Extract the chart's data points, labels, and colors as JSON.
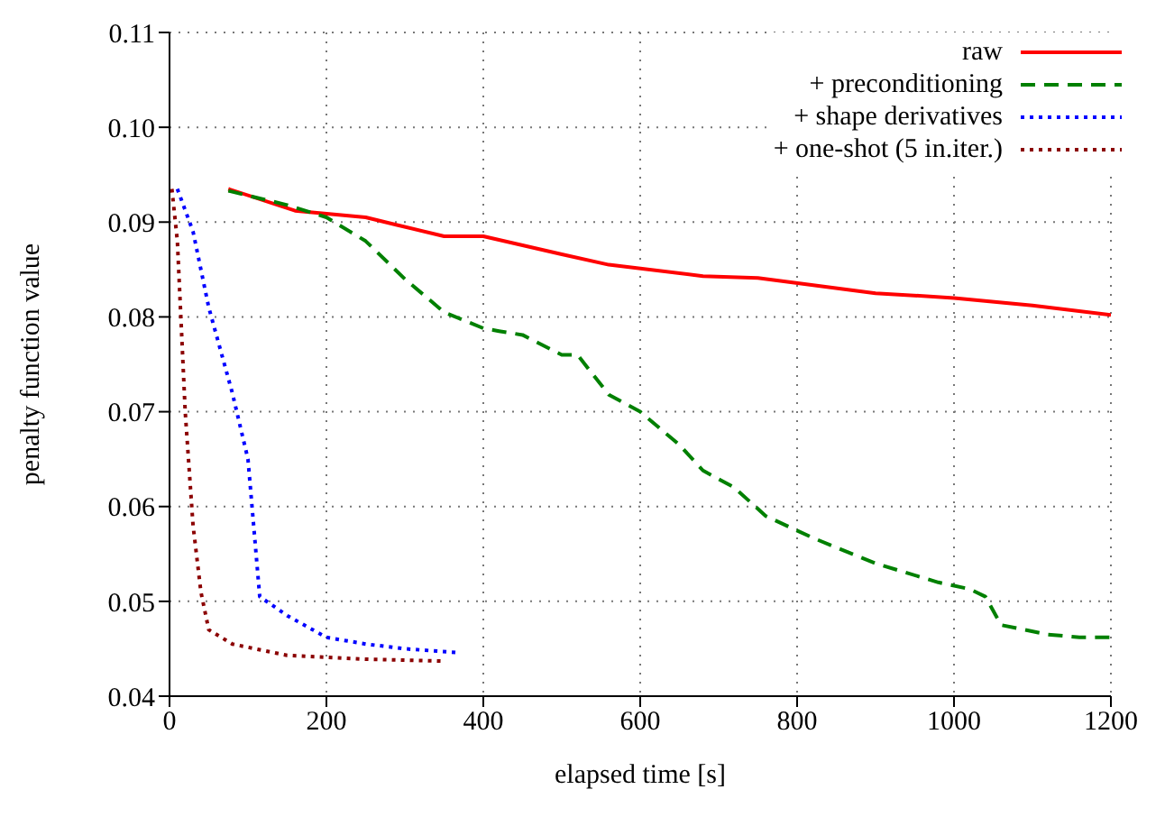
{
  "chart_data": {
    "type": "line",
    "xlabel": "elapsed time [s]",
    "ylabel": "penalty function value",
    "xlim": [
      0,
      1200
    ],
    "xticks": [
      0,
      200,
      400,
      600,
      800,
      1000,
      1200
    ],
    "ylim": [
      0.04,
      0.11
    ],
    "yticks": [
      {
        "value": 0.04,
        "label": "0.04"
      },
      {
        "value": 0.05,
        "label": "0.05"
      },
      {
        "value": 0.06,
        "label": "0.06"
      },
      {
        "value": 0.07,
        "label": "0.07"
      },
      {
        "value": 0.08,
        "label": "0.08"
      },
      {
        "value": 0.09,
        "label": "0.09"
      },
      {
        "value": 0.1,
        "label": "0.10"
      },
      {
        "value": 0.11,
        "label": "0.11"
      }
    ],
    "grid": true,
    "legend": "top right",
    "marker": "none",
    "series": [
      {
        "name": "raw",
        "color": "#ff0000",
        "line_style": "solid",
        "x": [
          75,
          160,
          250,
          290,
          350,
          400,
          500,
          560,
          680,
          750,
          900,
          1000,
          1100,
          1200
        ],
        "values": [
          0.0935,
          0.0912,
          0.0905,
          0.0897,
          0.0885,
          0.0885,
          0.0866,
          0.0855,
          0.0843,
          0.0841,
          0.0825,
          0.082,
          0.0812,
          0.0802
        ]
      },
      {
        "name": "+ preconditioning",
        "color": "#008000",
        "line_style": "dashed",
        "x": [
          75,
          150,
          200,
          250,
          300,
          350,
          400,
          420,
          450,
          500,
          520,
          560,
          600,
          650,
          680,
          720,
          760,
          820,
          900,
          980,
          1020,
          1040,
          1060,
          1120,
          1160,
          1200
        ],
        "values": [
          0.0933,
          0.0918,
          0.0905,
          0.088,
          0.084,
          0.0805,
          0.0788,
          0.0785,
          0.0781,
          0.076,
          0.076,
          0.0718,
          0.07,
          0.0665,
          0.0638,
          0.062,
          0.059,
          0.0567,
          0.054,
          0.052,
          0.0513,
          0.0505,
          0.0475,
          0.0465,
          0.0462,
          0.0462
        ]
      },
      {
        "name": "+ shape derivatives",
        "color": "#0000ff",
        "line_style": "dotted",
        "x": [
          10,
          30,
          50,
          80,
          100,
          115,
          150,
          200,
          250,
          300,
          365
        ],
        "values": [
          0.0935,
          0.089,
          0.081,
          0.072,
          0.065,
          0.0505,
          0.0485,
          0.0462,
          0.0455,
          0.045,
          0.0446
        ]
      },
      {
        "name": "+ one-shot (5 in.iter.)",
        "color": "#8b0000",
        "line_style": "dotted",
        "x": [
          3,
          10,
          20,
          30,
          40,
          50,
          80,
          150,
          250,
          350
        ],
        "values": [
          0.0935,
          0.088,
          0.07,
          0.058,
          0.051,
          0.047,
          0.0455,
          0.0443,
          0.0439,
          0.0437
        ]
      }
    ]
  }
}
